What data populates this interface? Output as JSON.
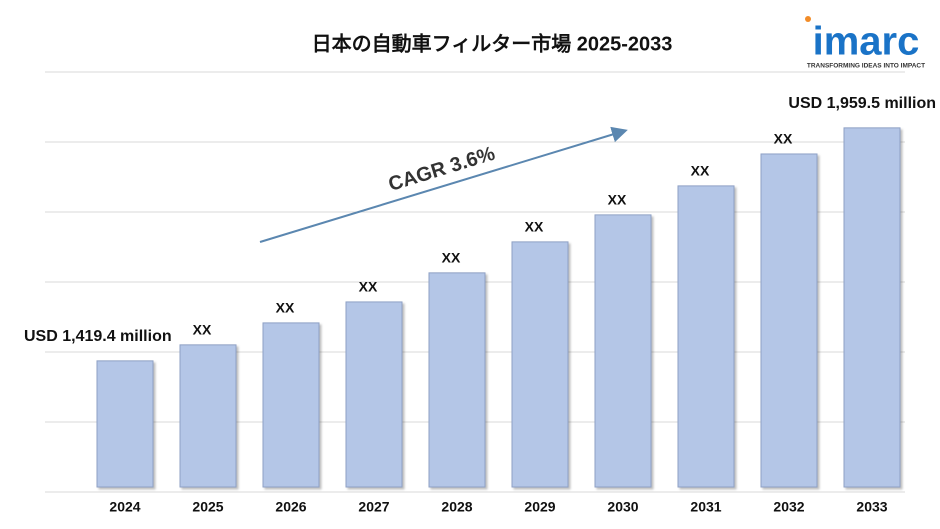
{
  "chart_data": {
    "type": "bar",
    "title": "日本の自動車フィルター市場 2025-2033",
    "annotation": "CAGR 3.6%",
    "categories": [
      "2024",
      "2025",
      "2026",
      "2027",
      "2028",
      "2029",
      "2030",
      "2031",
      "2032",
      "2033"
    ],
    "values": [
      1419.4,
      1456.5,
      1507.4,
      1556,
      1623.4,
      1695.2,
      1757.8,
      1825,
      1899,
      1959.5
    ],
    "value_labels": [
      "USD 1,419.4 million",
      "XX",
      "XX",
      "XX",
      "XX",
      "XX",
      "XX",
      "XX",
      "XX",
      "USD 1,959.5 million"
    ],
    "color": "#b4c6e7",
    "ylim": [
      1127,
      2089
    ]
  },
  "logo": {
    "name": "imarc",
    "tagline": "TRANSFORMING IDEAS INTO IMPACT"
  }
}
